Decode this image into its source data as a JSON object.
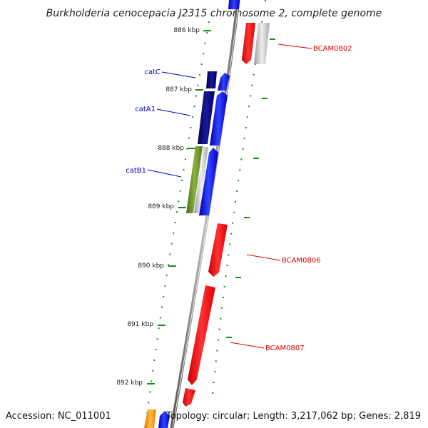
{
  "title": "Burkholderia cenocepacia J2315 chromosome 2, complete genome",
  "footer": {
    "accession": "Accession: NC_011001",
    "summary": "Topology: circular; Length: 3,217,062 bp; Genes: 2,819"
  },
  "colors": {
    "backbone": "#808080",
    "tick_dots": "#1a8a1a",
    "forward_gene": "#0000ee",
    "reverse_gene": "#ee0000",
    "catC_gene": "#000080",
    "catA1_gene": "#000080",
    "catB1_gene": "#6b8e23",
    "other_gene": "#bbbbbb",
    "orange_gene": "#ff9900",
    "label_blue": "#0000cc",
    "label_red": "#dd0000"
  },
  "scale_ticks": [
    {
      "label": "886 kbp"
    },
    {
      "label": "887 kbp"
    },
    {
      "label": "888 kbp"
    },
    {
      "label": "889 kbp"
    },
    {
      "label": "890 kbp"
    },
    {
      "label": "891 kbp"
    },
    {
      "label": "892 kbp"
    }
  ],
  "gene_labels": [
    {
      "name": "catC",
      "color_key": "label_blue"
    },
    {
      "name": "catA1",
      "color_key": "label_blue"
    },
    {
      "name": "catB1",
      "color_key": "label_blue"
    },
    {
      "name": "BCAM0802",
      "color_key": "label_red"
    },
    {
      "name": "BCAM0806",
      "color_key": "label_red"
    },
    {
      "name": "BCAM0807",
      "color_key": "label_red"
    }
  ]
}
